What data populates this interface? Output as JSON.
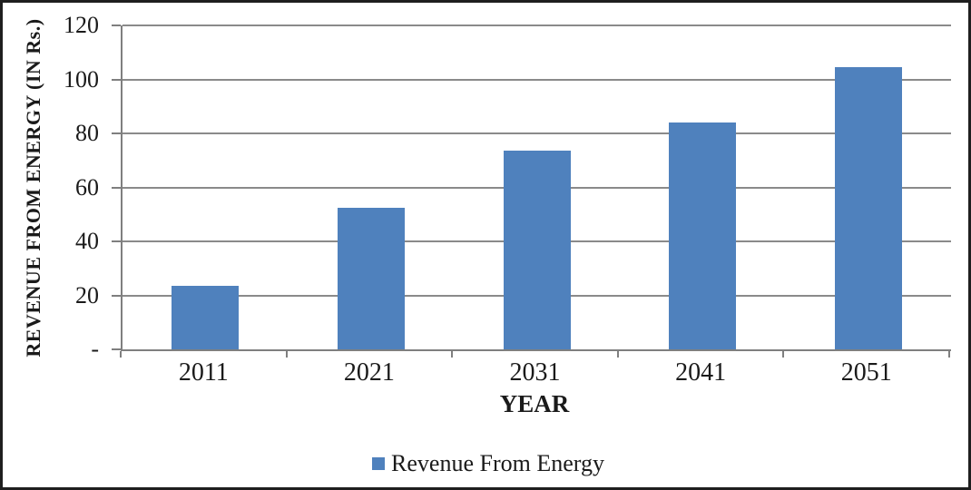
{
  "chart_data": {
    "type": "bar",
    "title": "",
    "categories": [
      "2011",
      "2021",
      "2031",
      "2041",
      "2051"
    ],
    "values": [
      23.5,
      52.5,
      73.5,
      84,
      104.5
    ],
    "series": [
      {
        "name": "Revenue From Energy",
        "values": [
          23.5,
          52.5,
          73.5,
          84,
          104.5
        ]
      }
    ],
    "xlabel": "YEAR",
    "ylabel": "REVENUE FROM ENERGY (IN Rs.)",
    "ylim": [
      0,
      120
    ],
    "ytick_step": 20,
    "ytick_labels": [
      "-",
      "20",
      "40",
      "60",
      "80",
      "100",
      "120"
    ],
    "zero_tick_label": "-",
    "grid": true,
    "legend_position": "bottom",
    "legend": [
      {
        "label": "Revenue From Energy",
        "color": "#4F81BD"
      }
    ]
  },
  "colors": {
    "bar": "#4F81BD",
    "gridline": "#8a8a8a",
    "axis": "#7f7f7f",
    "border": "#1f1f1f",
    "text": "#1a1a1a",
    "background": "#ffffff"
  }
}
